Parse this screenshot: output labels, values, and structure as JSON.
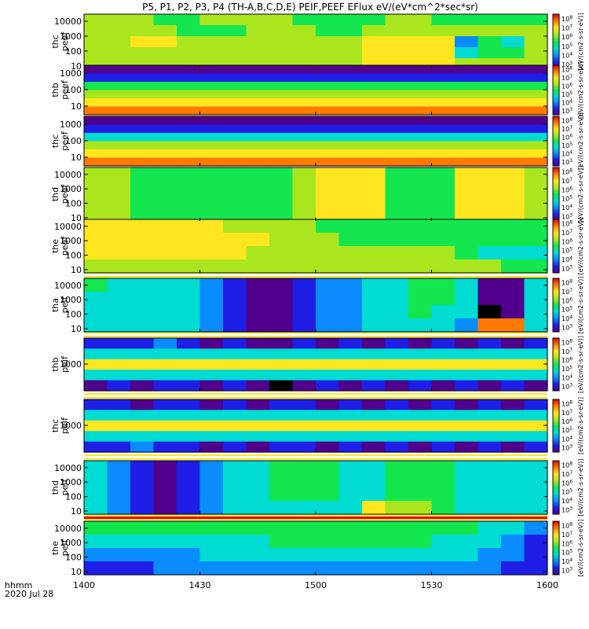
{
  "title": "P5, P1, P2, P3, P4 (TH-A,B,C,D,E) PEIF,PEEF EFlux eV/(eV*cm^2*sec*sr)",
  "time_axis": {
    "label_line1": "hhmm",
    "label_line2": "2020 Jul 28",
    "ticks": [
      "1400",
      "1430",
      "1500",
      "1530",
      "1600"
    ]
  },
  "colorbar_ticks": [
    "10^3",
    "10^4",
    "10^5",
    "10^6",
    "10^7",
    "10^8"
  ],
  "colorbar_unit_text": "[eV/(cm2-s-sr-eV)]",
  "chart_data": {
    "type": "heatmap",
    "x_range": [
      "14:00",
      "16:00"
    ],
    "y_scale": "log",
    "color_scale": "rainbow (purple=low, red=high)",
    "panels": [
      {
        "name_lines": [
          "thc",
          "peef"
        ],
        "yticks": [
          "10",
          "100",
          "1000",
          "10000"
        ],
        "ylim": [
          6,
          30000
        ],
        "color_levels": [
          [
            6,
            6,
            6,
            5,
            5,
            6,
            6,
            6,
            6,
            5,
            5,
            5,
            5,
            6,
            6,
            5,
            5,
            5,
            5,
            5
          ],
          [
            6,
            6,
            6,
            6,
            5,
            5,
            5,
            6,
            6,
            6,
            5,
            5,
            6,
            6,
            6,
            6,
            6,
            6,
            6,
            6
          ],
          [
            6,
            6,
            7,
            7,
            6,
            6,
            6,
            6,
            6,
            6,
            6,
            6,
            7,
            7,
            7,
            7,
            3,
            5,
            4,
            6
          ],
          [
            6,
            6,
            6,
            6,
            6,
            6,
            6,
            6,
            6,
            6,
            6,
            6,
            7,
            7,
            7,
            7,
            4,
            5,
            5,
            6
          ],
          [
            6,
            6,
            6,
            6,
            6,
            6,
            6,
            6,
            6,
            6,
            6,
            6,
            7,
            7,
            7,
            7,
            6,
            6,
            6,
            6
          ]
        ]
      },
      {
        "name_lines": [
          "thb",
          "peef"
        ],
        "yticks": [
          "10",
          "100",
          "1000"
        ],
        "ylim": [
          3,
          3000
        ],
        "color_levels": [
          [
            1,
            1,
            1,
            1,
            1,
            1,
            1,
            1,
            1,
            1,
            1,
            1,
            1,
            1,
            1,
            1,
            1,
            1,
            1,
            1
          ],
          [
            2,
            2,
            2,
            2,
            2,
            2,
            2,
            2,
            2,
            2,
            2,
            2,
            2,
            2,
            2,
            2,
            2,
            2,
            2,
            2
          ],
          [
            5,
            5,
            5,
            5,
            5,
            5,
            5,
            5,
            5,
            5,
            5,
            5,
            5,
            5,
            5,
            5,
            5,
            5,
            5,
            5
          ],
          [
            6,
            6,
            6,
            6,
            6,
            6,
            6,
            6,
            6,
            6,
            6,
            6,
            6,
            6,
            6,
            6,
            6,
            6,
            6,
            6
          ],
          [
            7,
            7,
            7,
            7,
            7,
            7,
            7,
            7,
            7,
            7,
            7,
            7,
            7,
            7,
            7,
            7,
            7,
            7,
            7,
            7
          ],
          [
            8,
            8,
            8,
            8,
            8,
            8,
            8,
            8,
            8,
            8,
            8,
            8,
            8,
            8,
            8,
            8,
            8,
            8,
            8,
            8
          ]
        ]
      },
      {
        "name_lines": [
          "thc",
          "peef"
        ],
        "yticks": [
          "10",
          "100",
          "1000"
        ],
        "ylim": [
          3,
          3000
        ],
        "color_levels": [
          [
            1,
            1,
            1,
            1,
            1,
            1,
            1,
            1,
            1,
            1,
            1,
            1,
            1,
            1,
            1,
            1,
            1,
            1,
            1,
            1
          ],
          [
            2,
            2,
            2,
            2,
            2,
            2,
            2,
            2,
            2,
            2,
            2,
            2,
            2,
            2,
            2,
            2,
            2,
            2,
            2,
            2
          ],
          [
            4,
            4,
            4,
            4,
            4,
            4,
            4,
            4,
            4,
            4,
            4,
            4,
            4,
            4,
            4,
            4,
            4,
            4,
            4,
            4
          ],
          [
            6,
            6,
            6,
            6,
            6,
            6,
            6,
            6,
            6,
            6,
            6,
            6,
            6,
            6,
            6,
            6,
            6,
            6,
            6,
            6
          ],
          [
            7,
            7,
            7,
            7,
            7,
            7,
            7,
            7,
            7,
            7,
            7,
            7,
            7,
            7,
            7,
            7,
            7,
            7,
            7,
            7
          ],
          [
            8,
            8,
            8,
            8,
            8,
            8,
            8,
            8,
            8,
            8,
            8,
            8,
            8,
            8,
            8,
            8,
            8,
            8,
            8,
            8
          ]
        ]
      },
      {
        "name_lines": [
          "thd",
          "peef"
        ],
        "yticks": [
          "10",
          "100",
          "1000",
          "10000"
        ],
        "ylim": [
          6,
          30000
        ],
        "color_levels": [
          [
            6,
            6,
            5,
            5,
            5,
            5,
            5,
            5,
            5,
            6,
            7,
            7,
            7,
            5,
            5,
            5,
            7,
            7,
            7,
            6
          ],
          [
            6,
            6,
            5,
            5,
            5,
            5,
            5,
            5,
            5,
            6,
            7,
            7,
            7,
            5,
            5,
            5,
            7,
            7,
            7,
            6
          ],
          [
            6,
            6,
            5,
            5,
            5,
            5,
            5,
            5,
            5,
            6,
            7,
            7,
            7,
            5,
            5,
            5,
            7,
            7,
            7,
            6
          ],
          [
            6,
            6,
            5,
            5,
            5,
            5,
            5,
            5,
            5,
            6,
            7,
            7,
            7,
            5,
            5,
            5,
            7,
            7,
            7,
            6
          ]
        ]
      },
      {
        "name_lines": [
          "the",
          "peef"
        ],
        "yticks": [
          "10",
          "100",
          "1000",
          "10000"
        ],
        "ylim": [
          6,
          30000
        ],
        "color_levels": [
          [
            7,
            7,
            7,
            7,
            7,
            7,
            6,
            6,
            6,
            6,
            5,
            5,
            5,
            5,
            5,
            5,
            5,
            5,
            5,
            5
          ],
          [
            7,
            7,
            7,
            7,
            7,
            7,
            7,
            7,
            6,
            6,
            6,
            5,
            5,
            5,
            5,
            5,
            5,
            5,
            5,
            5
          ],
          [
            7,
            7,
            7,
            7,
            7,
            7,
            7,
            6,
            6,
            6,
            6,
            6,
            6,
            6,
            6,
            6,
            5,
            4,
            4,
            4
          ],
          [
            6,
            6,
            6,
            6,
            6,
            6,
            6,
            6,
            6,
            6,
            6,
            6,
            6,
            6,
            6,
            6,
            6,
            6,
            5,
            5
          ]
        ]
      },
      {
        "name_lines": [
          "tha",
          "peif"
        ],
        "yticks": [
          "10",
          "100",
          "1000",
          "10000"
        ],
        "ylim": [
          6,
          30000
        ],
        "color_levels": [
          [
            5,
            4,
            4,
            4,
            4,
            3,
            2,
            1,
            1,
            2,
            3,
            3,
            4,
            4,
            5,
            5,
            4,
            1,
            1,
            4
          ],
          [
            4,
            4,
            4,
            4,
            4,
            3,
            2,
            1,
            1,
            2,
            3,
            3,
            4,
            4,
            5,
            5,
            4,
            1,
            1,
            4
          ],
          [
            4,
            4,
            4,
            4,
            4,
            3,
            2,
            1,
            1,
            2,
            3,
            3,
            4,
            4,
            5,
            4,
            4,
            0,
            1,
            4
          ],
          [
            4,
            4,
            4,
            4,
            4,
            3,
            2,
            1,
            1,
            2,
            3,
            3,
            4,
            4,
            4,
            4,
            3,
            8,
            8,
            4
          ]
        ]
      },
      {
        "name_lines": [
          "thb",
          "peif"
        ],
        "yticks": [
          "1000"
        ],
        "ylim": [
          30,
          30000
        ],
        "color_levels": [
          [
            2,
            2,
            2,
            3,
            2,
            1,
            2,
            1,
            1,
            2,
            1,
            2,
            1,
            2,
            1,
            2,
            1,
            2,
            1,
            2
          ],
          [
            4,
            4,
            4,
            4,
            4,
            4,
            4,
            4,
            4,
            4,
            4,
            4,
            4,
            4,
            4,
            4,
            4,
            4,
            4,
            4
          ],
          [
            7,
            7,
            7,
            7,
            7,
            7,
            7,
            7,
            7,
            7,
            7,
            7,
            7,
            7,
            7,
            7,
            7,
            7,
            7,
            7
          ],
          [
            4,
            4,
            4,
            4,
            4,
            4,
            4,
            4,
            4,
            4,
            4,
            4,
            4,
            4,
            4,
            4,
            4,
            4,
            4,
            4
          ],
          [
            1,
            2,
            1,
            2,
            2,
            1,
            2,
            1,
            0,
            1,
            2,
            1,
            2,
            1,
            2,
            1,
            2,
            1,
            2,
            1
          ]
        ]
      },
      {
        "name_lines": [
          "thc",
          "peif"
        ],
        "yticks": [
          "1000"
        ],
        "ylim": [
          30,
          30000
        ],
        "color_levels": [
          [
            2,
            2,
            1,
            2,
            2,
            1,
            2,
            1,
            2,
            2,
            1,
            2,
            1,
            2,
            1,
            2,
            1,
            2,
            1,
            2
          ],
          [
            4,
            4,
            4,
            4,
            4,
            4,
            4,
            4,
            4,
            4,
            4,
            4,
            4,
            4,
            4,
            4,
            4,
            4,
            4,
            4
          ],
          [
            7,
            7,
            7,
            7,
            7,
            7,
            7,
            7,
            7,
            7,
            7,
            7,
            7,
            7,
            7,
            7,
            7,
            7,
            7,
            7
          ],
          [
            4,
            4,
            4,
            4,
            4,
            4,
            4,
            4,
            4,
            4,
            4,
            4,
            4,
            4,
            4,
            4,
            4,
            4,
            4,
            4
          ],
          [
            2,
            2,
            3,
            2,
            2,
            1,
            2,
            1,
            2,
            2,
            1,
            2,
            1,
            2,
            1,
            2,
            1,
            2,
            1,
            2
          ]
        ]
      },
      {
        "name_lines": [
          "thd",
          "peif"
        ],
        "yticks": [
          "10",
          "100",
          "1000",
          "10000"
        ],
        "ylim": [
          6,
          30000
        ],
        "color_levels": [
          [
            4,
            3,
            2,
            1,
            2,
            3,
            4,
            4,
            5,
            5,
            5,
            4,
            4,
            5,
            5,
            5,
            4,
            4,
            4,
            4
          ],
          [
            4,
            3,
            2,
            1,
            2,
            3,
            4,
            4,
            5,
            5,
            5,
            4,
            4,
            5,
            5,
            5,
            4,
            4,
            4,
            4
          ],
          [
            4,
            3,
            2,
            1,
            2,
            3,
            4,
            4,
            5,
            5,
            5,
            4,
            4,
            5,
            5,
            5,
            4,
            4,
            4,
            4
          ],
          [
            4,
            3,
            2,
            1,
            2,
            3,
            4,
            4,
            4,
            4,
            4,
            4,
            7,
            6,
            6,
            5,
            4,
            4,
            4,
            4
          ]
        ]
      },
      {
        "name_lines": [
          "the",
          "peif"
        ],
        "yticks": [
          "10",
          "100",
          "1000",
          "10000"
        ],
        "ylim": [
          6,
          30000
        ],
        "color_levels": [
          [
            5,
            5,
            5,
            5,
            5,
            5,
            5,
            5,
            5,
            5,
            5,
            5,
            5,
            5,
            5,
            5,
            5,
            4,
            4,
            3
          ],
          [
            4,
            4,
            4,
            4,
            4,
            4,
            4,
            4,
            5,
            5,
            5,
            5,
            5,
            5,
            5,
            4,
            4,
            4,
            3,
            2
          ],
          [
            3,
            3,
            3,
            3,
            3,
            4,
            4,
            4,
            4,
            4,
            4,
            4,
            4,
            4,
            4,
            4,
            4,
            3,
            3,
            2
          ],
          [
            2,
            2,
            2,
            3,
            3,
            3,
            3,
            3,
            3,
            3,
            3,
            3,
            3,
            3,
            3,
            3,
            3,
            3,
            2,
            2
          ]
        ]
      }
    ]
  }
}
